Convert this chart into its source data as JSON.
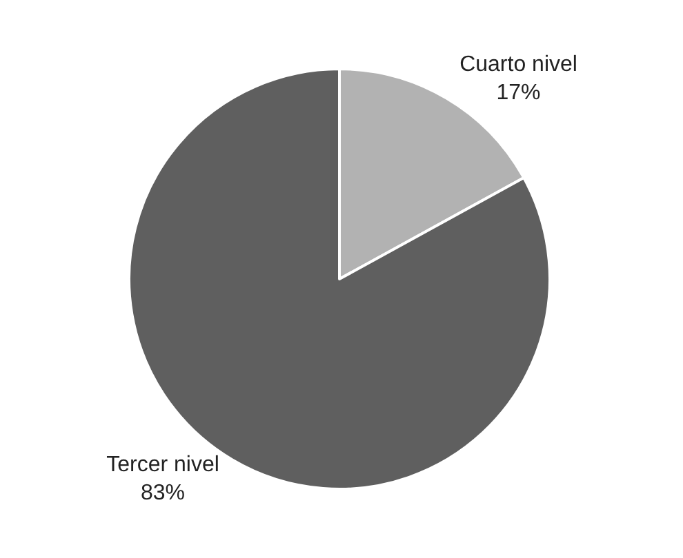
{
  "chart_data": {
    "type": "pie",
    "categories": [
      "Cuarto nivel",
      "Tercer nivel"
    ],
    "values": [
      17,
      83
    ],
    "colors": [
      "#b2b2b2",
      "#5f5f5f"
    ],
    "value_labels": [
      "17%",
      "83%"
    ],
    "legend": false
  }
}
